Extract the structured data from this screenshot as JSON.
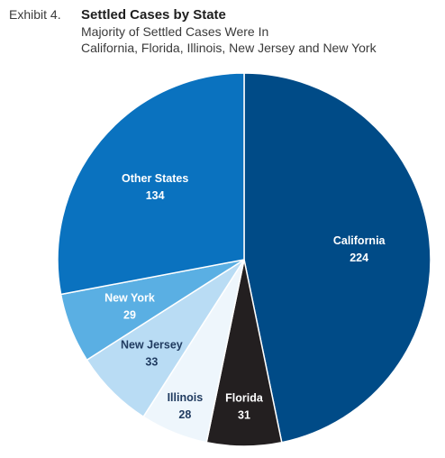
{
  "header": {
    "exhibit": "Exhibit 4.",
    "subtitle_line1": "Majority of Settled Cases Were In",
    "subtitle_line2": "California, Florida, Illinois, New Jersey and New York"
  },
  "chart_data": {
    "type": "pie",
    "title": "Settled Cases by State",
    "subtitle": "Majority of Settled Cases Were In California, Florida, Illinois, New Jersey and New York",
    "slices": [
      {
        "name": "California",
        "value": 224,
        "color": "#004b87",
        "label_color": "#ffffff"
      },
      {
        "name": "Florida",
        "value": 31,
        "color": "#231f20",
        "label_color": "#ffffff"
      },
      {
        "name": "Illinois",
        "value": 28,
        "color": "#eef6fc",
        "label_color": "#1f3a5f"
      },
      {
        "name": "New Jersey",
        "value": 33,
        "color": "#b9dcf4",
        "label_color": "#1f3a5f"
      },
      {
        "name": "New York",
        "value": 29,
        "color": "#5aafe3",
        "label_color": "#ffffff"
      },
      {
        "name": "Other States",
        "value": 134,
        "color": "#0a72bf",
        "label_color": "#ffffff"
      }
    ],
    "start": "12 o'clock",
    "direction": "clockwise",
    "legend": "none",
    "labels": "on slices (name and value)"
  }
}
